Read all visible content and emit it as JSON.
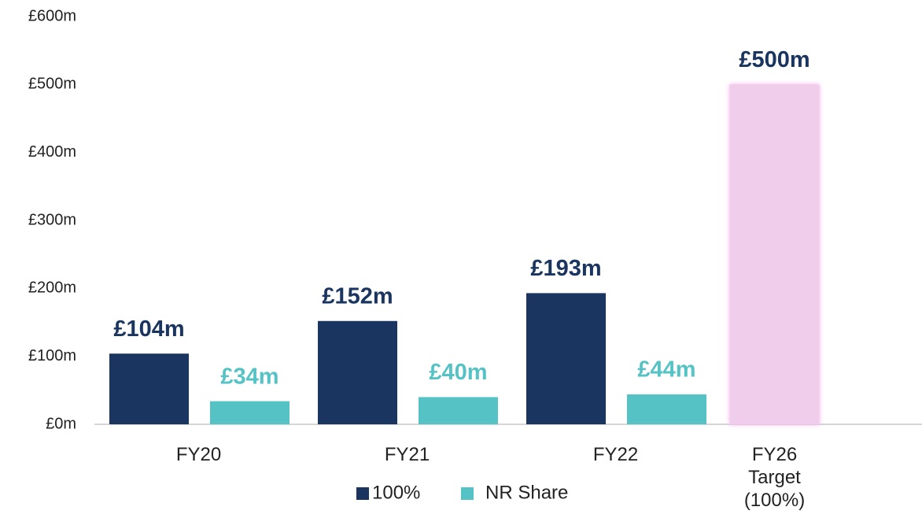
{
  "chart_data": {
    "type": "bar",
    "categories": [
      "FY20",
      "FY21",
      "FY22",
      "FY26 Target (100%)"
    ],
    "series": [
      {
        "name": "100%",
        "color": "#1a3560",
        "point_colors": [
          "#1a3560",
          "#1a3560",
          "#1a3560",
          "#f0cdeb"
        ],
        "values": [
          104,
          152,
          193,
          500
        ],
        "value_labels": [
          "£104m",
          "£152m",
          "£193m",
          "£500m"
        ]
      },
      {
        "name": "NR Share",
        "color": "#55c3c5",
        "values": [
          34,
          40,
          44,
          null
        ],
        "value_labels": [
          "£34m",
          "£40m",
          "£44m",
          null
        ]
      }
    ],
    "ylim": [
      0,
      600
    ],
    "yticks": [
      {
        "value": 0,
        "label": "£0m"
      },
      {
        "value": 100,
        "label": "£100m"
      },
      {
        "value": 200,
        "label": "£200m"
      },
      {
        "value": 300,
        "label": "£300m"
      },
      {
        "value": 400,
        "label": "£400m"
      },
      {
        "value": 500,
        "label": "£500m"
      },
      {
        "value": 600,
        "label": "£600m"
      }
    ],
    "grid": false,
    "legend": "bottom"
  }
}
